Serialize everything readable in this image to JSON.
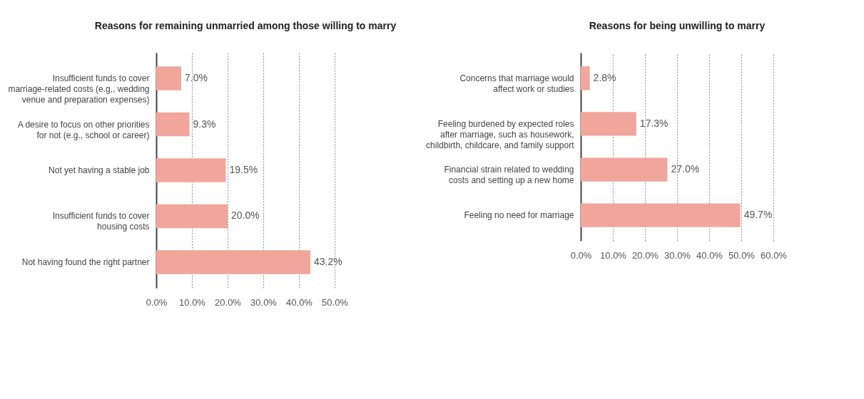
{
  "chart_data": [
    {
      "type": "bar",
      "orientation": "horizontal",
      "title": "Reasons for remaining unmarried among those willing to marry",
      "categories": [
        "Insufficient funds to cover\nmarriage-related costs (e.g,, wedding\nvenue and preparation expenses)",
        "A desire to focus on other priorities\nfor not (e.g., school or career)",
        "Not yet having a stable job",
        "Insufficient funds to cover\nhousing costs",
        "Not having found the right partner"
      ],
      "values": [
        7.0,
        9.3,
        19.5,
        20.0,
        43.2
      ],
      "color": "#f2a69b",
      "value_labels": [
        "7.0%",
        "9.3%",
        "19.5%",
        "20.0%",
        "43.2%"
      ],
      "xlim": [
        0,
        50
      ],
      "xticks": [
        {
          "value": 0,
          "label": "0.0%"
        },
        {
          "value": 10,
          "label": "10.0%"
        },
        {
          "value": 20,
          "label": "20.0%"
        },
        {
          "value": 30,
          "label": "30.0%"
        },
        {
          "value": 40,
          "label": "40.0%"
        },
        {
          "value": 50,
          "label": "50.0%"
        }
      ],
      "grid": "x"
    },
    {
      "type": "bar",
      "orientation": "horizontal",
      "title": "Reasons for being unwilling to marry",
      "categories": [
        "Concerns that marriage would\naffect work or studies",
        "Feeling burdened by expected roles\nafter marriage, such as housework,\nchildbirth, childcare, and family support",
        "Financial strain related to wedding\ncosts and setting up a new home",
        "Feeling no need for marriage"
      ],
      "values": [
        2.8,
        17.3,
        27.0,
        49.7
      ],
      "color": "#f2a69b",
      "value_labels": [
        "2.8%",
        "17.3%",
        "27.0%",
        "49.7%"
      ],
      "xlim": [
        0,
        60
      ],
      "xticks": [
        {
          "value": 0,
          "label": "0.0%"
        },
        {
          "value": 10,
          "label": "10.0%"
        },
        {
          "value": 20,
          "label": "20.0%"
        },
        {
          "value": 30,
          "label": "30.0%"
        },
        {
          "value": 40,
          "label": "40.0%"
        },
        {
          "value": 50,
          "label": "50.0%"
        },
        {
          "value": 60,
          "label": "60.0%"
        }
      ],
      "grid": "x"
    }
  ]
}
